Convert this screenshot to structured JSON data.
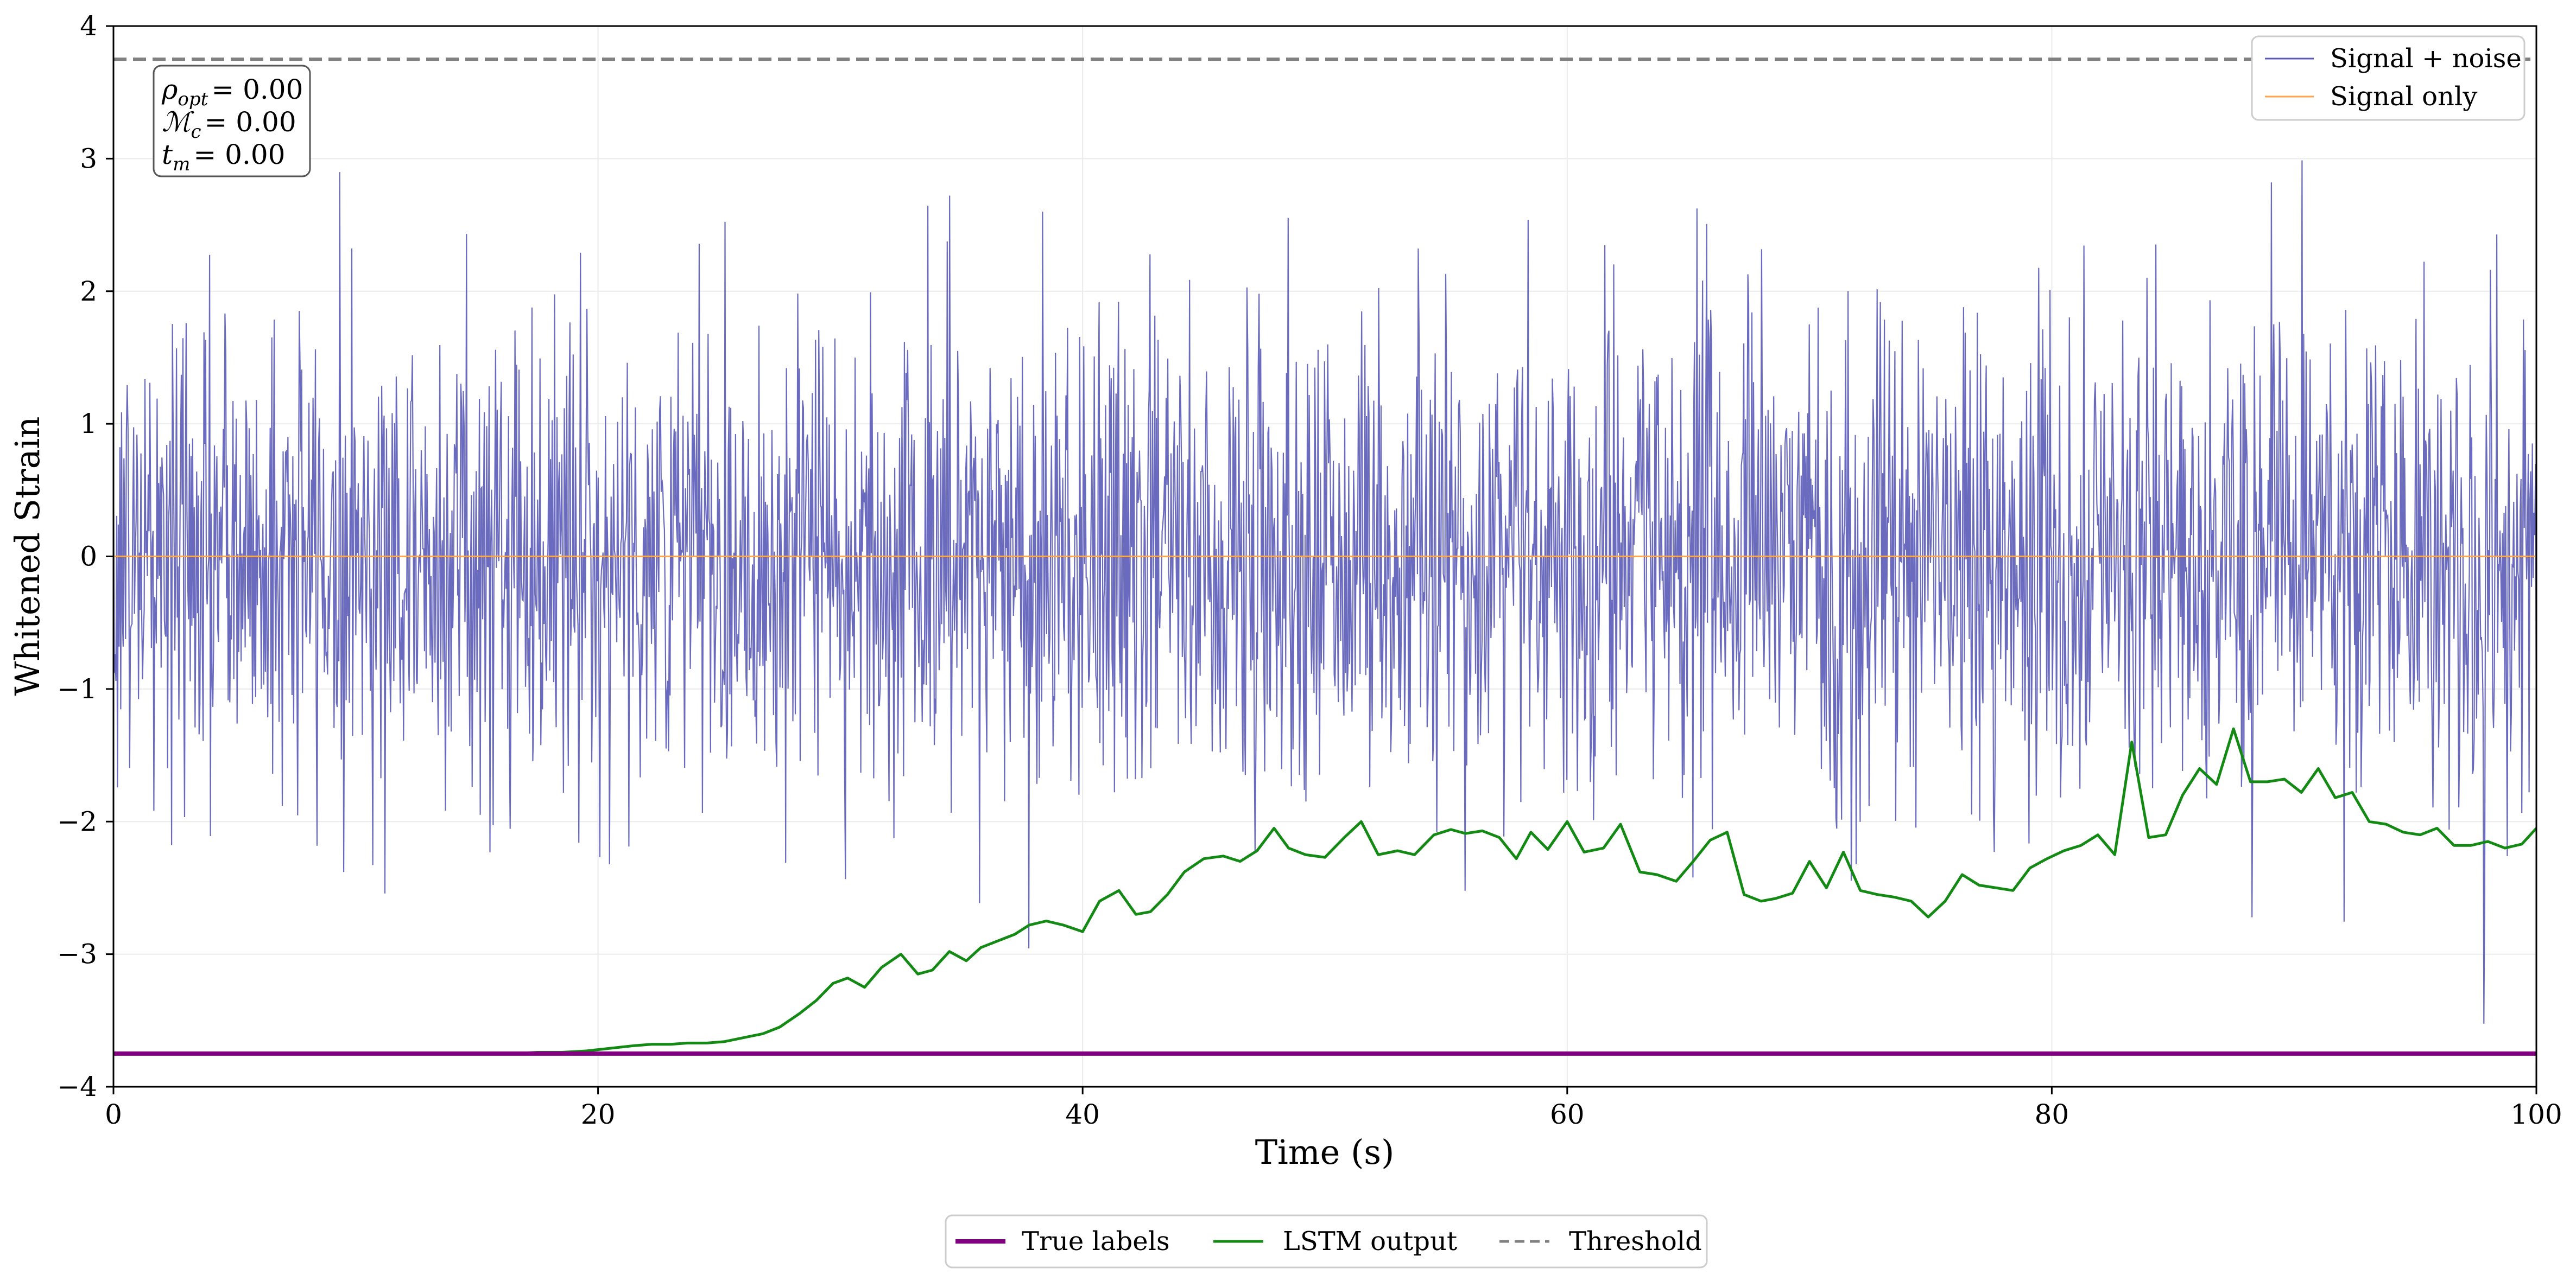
{
  "chart_data": {
    "type": "line",
    "title": "",
    "xlabel": "Time (s)",
    "ylabel": "Whitened Strain",
    "xlim": [
      0,
      100
    ],
    "ylim": [
      -4,
      4
    ],
    "xticks": [
      0,
      20,
      40,
      60,
      80,
      100
    ],
    "yticks": [
      -4,
      -3,
      -2,
      -1,
      0,
      1,
      2,
      3,
      4
    ],
    "xtick_labels": [
      "0",
      "20",
      "40",
      "60",
      "80",
      "100"
    ],
    "ytick_labels": [
      "−4",
      "−3",
      "−2",
      "−1",
      "0",
      "1",
      "2",
      "3",
      "4"
    ],
    "grid": true,
    "info_box": {
      "rho_symbol": "ρ",
      "rho_sub": "opt",
      "rho_value": "= 0.00",
      "mc_symbol": "ℳ",
      "mc_sub": "c",
      "mc_value": "= 0.00",
      "tm_symbol": "t",
      "tm_sub": "m",
      "tm_value": "= 0.00"
    },
    "noise_series": {
      "name": "Signal + noise",
      "color": "#5a5ab8",
      "samples": 3000,
      "std": 0.9,
      "seed": 20240611
    },
    "signal_only": {
      "name": "Signal only",
      "color": "#ffa64d",
      "value": 0.0
    },
    "threshold": {
      "name": "Threshold",
      "color": "#808080",
      "value": 3.75
    },
    "true_labels": {
      "name": "True labels",
      "color": "#800080",
      "value": -3.75
    },
    "lstm_output": {
      "name": "LSTM output",
      "color": "#138a13",
      "x": [
        0,
        5,
        10,
        15,
        16.5,
        17.5,
        18.5,
        19.5,
        20.5,
        21.5,
        22.2,
        23.0,
        23.7,
        24.5,
        25.2,
        26.0,
        26.8,
        27.5,
        28.3,
        29.0,
        29.7,
        30.3,
        31.0,
        31.7,
        32.5,
        33.2,
        33.8,
        34.5,
        35.2,
        35.8,
        36.5,
        37.2,
        37.8,
        38.5,
        39.2,
        40.0,
        40.7,
        41.5,
        42.2,
        42.8,
        43.5,
        44.2,
        45.0,
        45.8,
        46.5,
        47.2,
        47.9,
        48.5,
        49.2,
        50.0,
        50.8,
        51.5,
        52.2,
        53.0,
        53.7,
        54.5,
        55.2,
        55.8,
        56.5,
        57.2,
        57.9,
        58.5,
        59.2,
        60.0,
        60.7,
        61.5,
        62.2,
        63.0,
        63.7,
        64.5,
        65.2,
        65.9,
        66.6,
        67.3,
        68.0,
        68.6,
        69.3,
        70.0,
        70.7,
        71.4,
        72.1,
        72.8,
        73.5,
        74.2,
        74.9,
        75.6,
        76.3,
        77.0,
        77.7,
        78.4,
        79.1,
        79.8,
        80.5,
        81.2,
        81.9,
        82.6,
        83.3,
        84.0,
        84.7,
        85.4,
        86.1,
        86.8,
        87.5,
        88.2,
        88.9,
        89.6,
        90.3,
        91.0,
        91.7,
        92.4,
        93.1,
        93.8,
        94.5,
        95.2,
        95.9,
        96.6,
        97.3,
        98.0,
        98.7,
        99.4,
        100
      ],
      "y": [
        -3.75,
        -3.75,
        -3.75,
        -3.75,
        -3.75,
        -3.74,
        -3.74,
        -3.73,
        -3.71,
        -3.69,
        -3.68,
        -3.68,
        -3.67,
        -3.67,
        -3.66,
        -3.63,
        -3.6,
        -3.55,
        -3.45,
        -3.35,
        -3.22,
        -3.18,
        -3.25,
        -3.1,
        -3.0,
        -3.15,
        -3.12,
        -2.98,
        -3.05,
        -2.95,
        -2.9,
        -2.85,
        -2.78,
        -2.75,
        -2.78,
        -2.83,
        -2.6,
        -2.52,
        -2.7,
        -2.68,
        -2.55,
        -2.38,
        -2.28,
        -2.26,
        -2.3,
        -2.22,
        -2.05,
        -2.2,
        -2.25,
        -2.27,
        -2.12,
        -2.0,
        -2.25,
        -2.22,
        -2.25,
        -2.1,
        -2.06,
        -2.09,
        -2.07,
        -2.12,
        -2.28,
        -2.08,
        -2.21,
        -2.0,
        -2.23,
        -2.2,
        -2.02,
        -2.38,
        -2.4,
        -2.45,
        -2.3,
        -2.14,
        -2.08,
        -2.55,
        -2.6,
        -2.58,
        -2.54,
        -2.3,
        -2.5,
        -2.23,
        -2.52,
        -2.55,
        -2.57,
        -2.6,
        -2.72,
        -2.6,
        -2.4,
        -2.48,
        -2.5,
        -2.52,
        -2.35,
        -2.28,
        -2.22,
        -2.18,
        -2.1,
        -2.25,
        -1.4,
        -2.12,
        -2.1,
        -1.8,
        -1.6,
        -1.72,
        -1.3,
        -1.7,
        -1.7,
        -1.68,
        -1.78,
        -1.6,
        -1.82,
        -1.78,
        -2.0,
        -2.02,
        -2.08,
        -2.1,
        -2.05,
        -2.18,
        -2.18,
        -2.15,
        -2.2,
        -2.17,
        -2.05
      ]
    },
    "legend_top": {
      "position": "top-right",
      "entries": [
        "Signal + noise",
        "Signal only"
      ]
    },
    "legend_bottom": {
      "position": "bottom-center",
      "entries": [
        "True labels",
        "LSTM output",
        "Threshold"
      ]
    }
  }
}
